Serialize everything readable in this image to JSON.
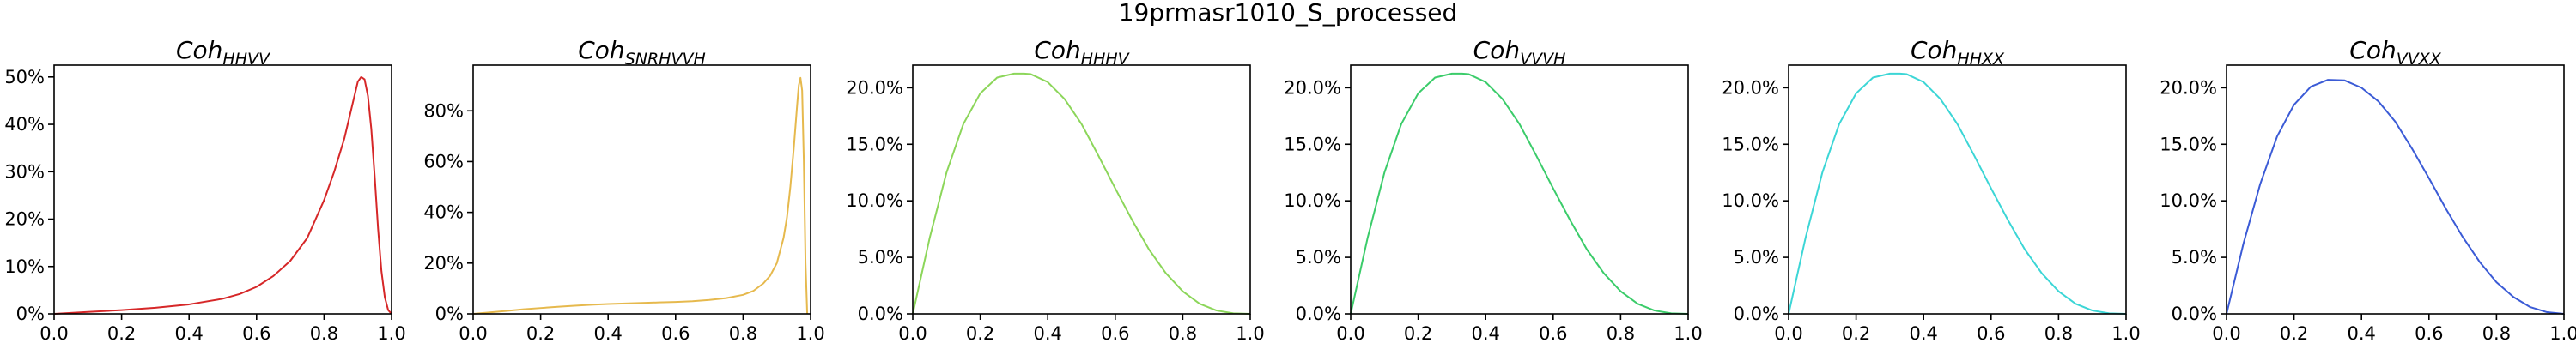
{
  "figure_title": "19prmasr1010_S_processed",
  "chart_data": [
    {
      "type": "line",
      "title": "Coh",
      "title_subscript": "HHVV",
      "color": "#d62728",
      "xlim": [
        0.0,
        1.0
      ],
      "ylim": [
        0,
        0.525
      ],
      "x_ticks": [
        0.0,
        0.2,
        0.4,
        0.6,
        0.8,
        1.0
      ],
      "x_tick_labels": [
        "0.0",
        "0.2",
        "0.4",
        "0.6",
        "0.8",
        "1.0"
      ],
      "y_ticks": [
        0,
        0.1,
        0.2,
        0.3,
        0.4,
        0.5
      ],
      "y_tick_labels": [
        "0%",
        "10%",
        "20%",
        "30%",
        "40%",
        "50%"
      ],
      "x": [
        0.0,
        0.1,
        0.2,
        0.3,
        0.4,
        0.5,
        0.55,
        0.6,
        0.65,
        0.7,
        0.75,
        0.8,
        0.83,
        0.86,
        0.88,
        0.9,
        0.91,
        0.92,
        0.93,
        0.94,
        0.95,
        0.96,
        0.97,
        0.98,
        0.99,
        1.0
      ],
      "y": [
        0.0,
        0.004,
        0.008,
        0.013,
        0.02,
        0.032,
        0.042,
        0.057,
        0.08,
        0.112,
        0.16,
        0.24,
        0.3,
        0.37,
        0.43,
        0.49,
        0.5,
        0.495,
        0.46,
        0.39,
        0.29,
        0.18,
        0.09,
        0.035,
        0.008,
        0.0
      ]
    },
    {
      "type": "line",
      "title": "Coh",
      "title_subscript": "SNRHVVH",
      "color": "#e6b94d",
      "xlim": [
        0.0,
        1.0
      ],
      "ylim": [
        0,
        0.98
      ],
      "x_ticks": [
        0.0,
        0.2,
        0.4,
        0.6,
        0.8,
        1.0
      ],
      "x_tick_labels": [
        "0.0",
        "0.2",
        "0.4",
        "0.6",
        "0.8",
        "1.0"
      ],
      "y_ticks": [
        0,
        0.2,
        0.4,
        0.6,
        0.8
      ],
      "y_tick_labels": [
        "0%",
        "20%",
        "40%",
        "60%",
        "80%"
      ],
      "x": [
        0.0,
        0.05,
        0.1,
        0.15,
        0.2,
        0.25,
        0.3,
        0.35,
        0.4,
        0.45,
        0.5,
        0.55,
        0.6,
        0.65,
        0.7,
        0.75,
        0.8,
        0.83,
        0.86,
        0.88,
        0.9,
        0.92,
        0.93,
        0.94,
        0.95,
        0.96,
        0.965,
        0.97,
        0.975,
        0.98,
        0.985,
        0.99
      ],
      "y": [
        0.0,
        0.006,
        0.012,
        0.018,
        0.023,
        0.028,
        0.032,
        0.036,
        0.039,
        0.041,
        0.043,
        0.045,
        0.047,
        0.05,
        0.055,
        0.062,
        0.075,
        0.09,
        0.12,
        0.15,
        0.2,
        0.3,
        0.38,
        0.5,
        0.65,
        0.82,
        0.9,
        0.93,
        0.88,
        0.6,
        0.2,
        0.0
      ]
    },
    {
      "type": "line",
      "title": "Coh",
      "title_subscript": "HHHV",
      "color": "#8cd65a",
      "xlim": [
        0.0,
        1.0
      ],
      "ylim": [
        0,
        0.22
      ],
      "x_ticks": [
        0.0,
        0.2,
        0.4,
        0.6,
        0.8,
        1.0
      ],
      "x_tick_labels": [
        "0.0",
        "0.2",
        "0.4",
        "0.6",
        "0.8",
        "1.0"
      ],
      "y_ticks": [
        0,
        0.05,
        0.1,
        0.15,
        0.2
      ],
      "y_tick_labels": [
        "0.0%",
        "5.0%",
        "10.0%",
        "15.0%",
        "20.0%"
      ],
      "x": [
        0.0,
        0.05,
        0.1,
        0.15,
        0.2,
        0.25,
        0.3,
        0.33,
        0.35,
        0.4,
        0.45,
        0.5,
        0.55,
        0.6,
        0.65,
        0.7,
        0.75,
        0.8,
        0.85,
        0.9,
        0.95,
        1.0
      ],
      "y": [
        0.0,
        0.067,
        0.125,
        0.168,
        0.195,
        0.209,
        0.2125,
        0.2125,
        0.212,
        0.205,
        0.19,
        0.168,
        0.14,
        0.111,
        0.083,
        0.057,
        0.036,
        0.02,
        0.009,
        0.003,
        0.0005,
        0.0
      ]
    },
    {
      "type": "line",
      "title": "Coh",
      "title_subscript": "VVVH",
      "color": "#3bcc6a",
      "xlim": [
        0.0,
        1.0
      ],
      "ylim": [
        0,
        0.22
      ],
      "x_ticks": [
        0.0,
        0.2,
        0.4,
        0.6,
        0.8,
        1.0
      ],
      "x_tick_labels": [
        "0.0",
        "0.2",
        "0.4",
        "0.6",
        "0.8",
        "1.0"
      ],
      "y_ticks": [
        0,
        0.05,
        0.1,
        0.15,
        0.2
      ],
      "y_tick_labels": [
        "0.0%",
        "5.0%",
        "10.0%",
        "15.0%",
        "20.0%"
      ],
      "x": [
        0.0,
        0.05,
        0.1,
        0.15,
        0.2,
        0.25,
        0.3,
        0.33,
        0.35,
        0.4,
        0.45,
        0.5,
        0.55,
        0.6,
        0.65,
        0.7,
        0.75,
        0.8,
        0.85,
        0.9,
        0.95,
        1.0
      ],
      "y": [
        0.0,
        0.067,
        0.125,
        0.168,
        0.195,
        0.209,
        0.2125,
        0.2125,
        0.212,
        0.205,
        0.19,
        0.168,
        0.14,
        0.111,
        0.083,
        0.057,
        0.036,
        0.02,
        0.009,
        0.003,
        0.0005,
        0.0
      ]
    },
    {
      "type": "line",
      "title": "Coh",
      "title_subscript": "HHXX",
      "color": "#3cd6d6",
      "xlim": [
        0.0,
        1.0
      ],
      "ylim": [
        0,
        0.22
      ],
      "x_ticks": [
        0.0,
        0.2,
        0.4,
        0.6,
        0.8,
        1.0
      ],
      "x_tick_labels": [
        "0.0",
        "0.2",
        "0.4",
        "0.6",
        "0.8",
        "1.0"
      ],
      "y_ticks": [
        0,
        0.05,
        0.1,
        0.15,
        0.2
      ],
      "y_tick_labels": [
        "0.0%",
        "5.0%",
        "10.0%",
        "15.0%",
        "20.0%"
      ],
      "x": [
        0.0,
        0.05,
        0.1,
        0.15,
        0.2,
        0.25,
        0.3,
        0.33,
        0.35,
        0.4,
        0.45,
        0.5,
        0.55,
        0.6,
        0.65,
        0.7,
        0.75,
        0.8,
        0.85,
        0.9,
        0.95,
        1.0
      ],
      "y": [
        0.0,
        0.067,
        0.125,
        0.168,
        0.195,
        0.209,
        0.2125,
        0.2125,
        0.212,
        0.205,
        0.19,
        0.168,
        0.14,
        0.111,
        0.083,
        0.057,
        0.036,
        0.02,
        0.009,
        0.003,
        0.0005,
        0.0
      ]
    },
    {
      "type": "line",
      "title": "Coh",
      "title_subscript": "VVXX",
      "color": "#3b5bd6",
      "xlim": [
        0.0,
        1.0
      ],
      "ylim": [
        0,
        0.22
      ],
      "x_ticks": [
        0.0,
        0.2,
        0.4,
        0.6,
        0.8,
        1.0
      ],
      "x_tick_labels": [
        "0.0",
        "0.2",
        "0.4",
        "0.6",
        "0.8",
        "1.0"
      ],
      "y_ticks": [
        0,
        0.05,
        0.1,
        0.15,
        0.2
      ],
      "y_tick_labels": [
        "0.0%",
        "5.0%",
        "10.0%",
        "15.0%",
        "20.0%"
      ],
      "x": [
        0.0,
        0.05,
        0.1,
        0.15,
        0.2,
        0.25,
        0.3,
        0.35,
        0.4,
        0.45,
        0.5,
        0.55,
        0.6,
        0.65,
        0.7,
        0.75,
        0.8,
        0.85,
        0.9,
        0.95,
        1.0
      ],
      "y": [
        0.0,
        0.062,
        0.115,
        0.157,
        0.185,
        0.201,
        0.207,
        0.2065,
        0.2,
        0.188,
        0.17,
        0.146,
        0.12,
        0.093,
        0.068,
        0.046,
        0.028,
        0.015,
        0.006,
        0.0015,
        0.0
      ]
    }
  ]
}
